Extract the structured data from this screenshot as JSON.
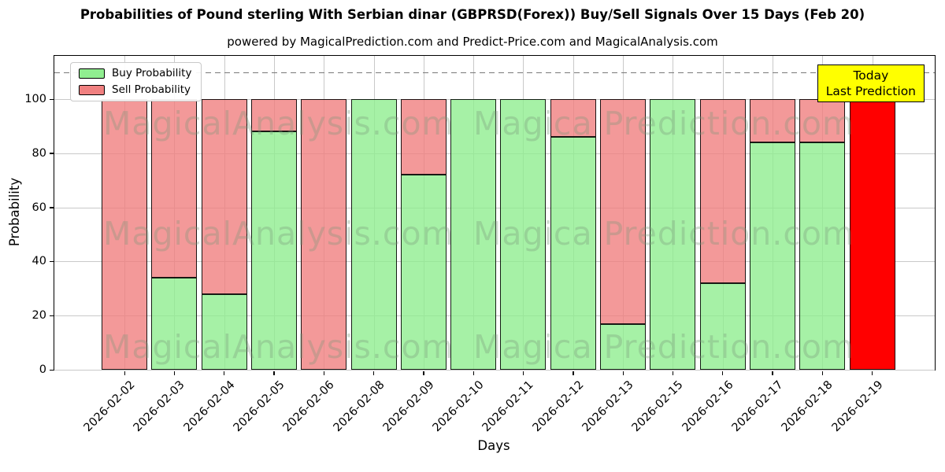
{
  "chart_data": {
    "type": "bar",
    "stacked": true,
    "title": "Probabilities of Pound sterling With Serbian dinar (GBPRSD(Forex)) Buy/Sell Signals Over 15 Days (Feb 20)",
    "subtitle": "powered by MagicalPrediction.com and Predict-Price.com and MagicalAnalysis.com",
    "xlabel": "Days",
    "ylabel": "Probability",
    "ylim": [
      0,
      116
    ],
    "yticks": [
      0,
      20,
      40,
      60,
      80,
      100
    ],
    "grid": true,
    "dashed_line_y": 110,
    "categories": [
      "2026-02-02",
      "2026-02-03",
      "2026-02-04",
      "2026-02-05",
      "2026-02-06",
      "2026-02-08",
      "2026-02-09",
      "2026-02-10",
      "2026-02-11",
      "2026-02-12",
      "2026-02-13",
      "2026-02-15",
      "2026-02-16",
      "2026-02-17",
      "2026-02-18",
      "2026-02-19"
    ],
    "series": [
      {
        "name": "Buy Probability",
        "color": "#90ee90",
        "values": [
          0,
          34,
          28,
          88,
          0,
          100,
          72,
          100,
          100,
          86,
          17,
          100,
          32,
          84,
          84,
          0
        ]
      },
      {
        "name": "Sell Probability",
        "color": "#f08080",
        "values": [
          100,
          66,
          72,
          12,
          100,
          0,
          28,
          0,
          0,
          14,
          83,
          0,
          68,
          16,
          16,
          100
        ]
      }
    ],
    "today_bar": {
      "index": 15,
      "category": "2026-02-19",
      "color": "#ff0000",
      "value": 100
    },
    "legend": {
      "position": "upper-left",
      "entries": [
        {
          "label": "Buy Probability",
          "color": "#90ee90"
        },
        {
          "label": "Sell Probability",
          "color": "#f08080"
        }
      ]
    },
    "annotation_box": {
      "lines": [
        "Today",
        "Last Prediction"
      ],
      "bg": "#ffff00",
      "border": "#000000"
    },
    "watermarks": {
      "left_text": "MagicalAnalysis.com",
      "right_text": "Magica Prediction.com"
    },
    "colors": {
      "bar_edge": "#000000",
      "grid": "#c9c9c9",
      "dashed_line": "#787878",
      "background": "#ffffff"
    }
  }
}
